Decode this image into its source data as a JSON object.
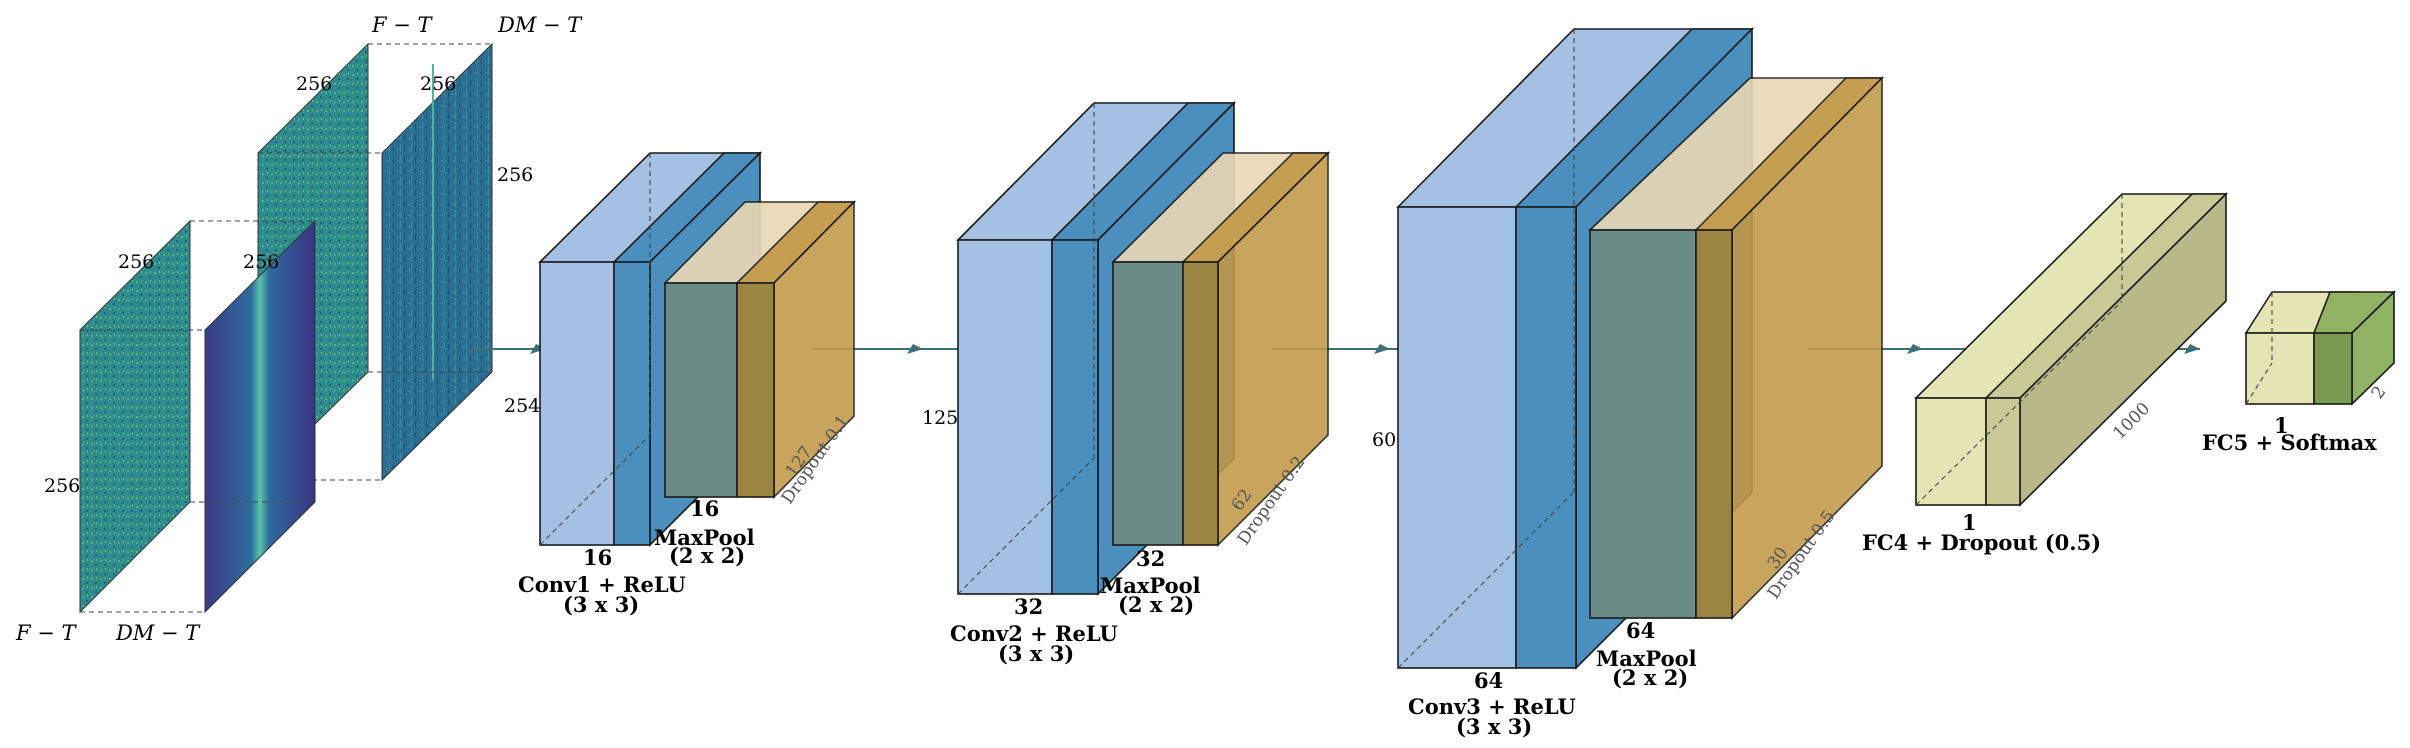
{
  "inputs": {
    "set_front": {
      "plane_a_label": "F − T",
      "plane_b_label": "DM − T",
      "dim_side": "256",
      "dim_top_a": "256",
      "dim_top_b": "256"
    },
    "set_back": {
      "plane_a_label": "F − T",
      "plane_b_label": "DM − T",
      "dim_side": "256",
      "dim_top_a": "256",
      "dim_top_b": "256"
    }
  },
  "blocks": {
    "conv1": {
      "height_label": "254",
      "depth_label": "16",
      "name_label": "Conv1 + ReLU",
      "kernel_label": "(3 x 3)"
    },
    "pool1": {
      "depth_label": "16",
      "name_label": "MaxPool",
      "kernel_label": "(2 x 2)",
      "size_label": "127",
      "dropout_label": "Dropout 0.1"
    },
    "conv2": {
      "height_label": "125",
      "depth_label": "32",
      "name_label": "Conv2 + ReLU",
      "kernel_label": "(3 x 3)"
    },
    "pool2": {
      "depth_label": "32",
      "name_label": "MaxPool",
      "kernel_label": "(2 x 2)",
      "size_label": "62",
      "dropout_label": "Dropout 0.2"
    },
    "conv3": {
      "height_label": "60",
      "depth_label": "64",
      "name_label": "Conv3 + ReLU",
      "kernel_label": "(3 x 3)"
    },
    "pool3": {
      "depth_label": "64",
      "name_label": "MaxPool",
      "kernel_label": "(2 x 2)",
      "size_label": "30",
      "dropout_label": "Dropout 0.5"
    },
    "fc4": {
      "depth_label": "1",
      "length_label": "1000",
      "name_label": "FC4 + Dropout (0.5)"
    },
    "fc5": {
      "depth_label": "1",
      "length_label": "2",
      "name_label": "FC5 + Softmax"
    }
  },
  "colors": {
    "conv_light": "#a4c0e2",
    "conv_dark": "#4a8fbd",
    "pool_light": "#e9d8b5",
    "pool_dark": "#c29846",
    "fc_light": "#e4e4b4",
    "fc_dark": "#8fb263",
    "spectrogram": "#2f8c8c",
    "arrow": "#3e6f78"
  }
}
